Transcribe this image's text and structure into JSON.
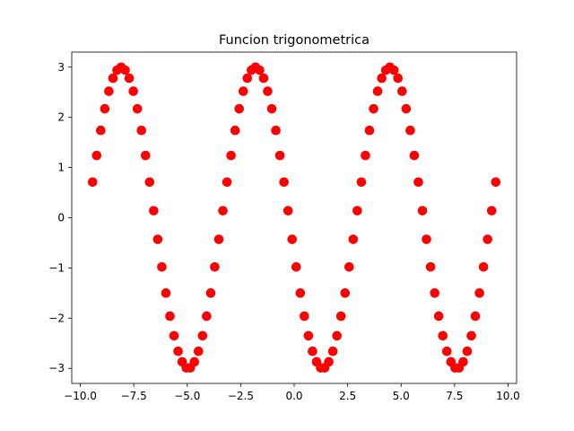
{
  "chart_data": {
    "type": "scatter",
    "title": "Funcion trigonometrica",
    "xlabel": "",
    "ylabel": "",
    "xlim": [
      -10.4,
      10.4
    ],
    "ylim": [
      -3.3,
      3.3
    ],
    "x_ticks": [
      -10.0,
      -7.5,
      -5.0,
      -2.5,
      0.0,
      2.5,
      5.0,
      7.5,
      10.0
    ],
    "x_tick_labels": [
      "−10.0",
      "−7.5",
      "−5.0",
      "−2.5",
      "0.0",
      "2.5",
      "5.0",
      "7.5",
      "10.0"
    ],
    "y_ticks": [
      -3,
      -2,
      -1,
      0,
      1,
      2,
      3
    ],
    "y_tick_labels": [
      "−3",
      "−2",
      "−1",
      "0",
      "1",
      "2",
      "3"
    ],
    "grid": false,
    "marker_color": "#ff0000",
    "x": [
      -9.425,
      -9.235,
      -9.044,
      -8.854,
      -8.664,
      -8.473,
      -8.283,
      -8.092,
      -7.902,
      -7.712,
      -7.521,
      -7.331,
      -7.14,
      -6.95,
      -6.76,
      -6.569,
      -6.379,
      -6.188,
      -5.998,
      -5.807,
      -5.617,
      -5.427,
      -5.236,
      -5.046,
      -4.855,
      -4.665,
      -4.475,
      -4.284,
      -4.094,
      -3.903,
      -3.713,
      -3.522,
      -3.332,
      -3.142,
      -2.951,
      -2.761,
      -2.57,
      -2.38,
      -2.19,
      -1.999,
      -1.809,
      -1.618,
      -1.428,
      -1.238,
      -1.047,
      -0.857,
      -0.666,
      -0.476,
      -0.286,
      -0.095,
      0.095,
      0.286,
      0.476,
      0.666,
      0.857,
      1.047,
      1.238,
      1.428,
      1.618,
      1.809,
      1.999,
      2.19,
      2.38,
      2.57,
      2.761,
      2.951,
      3.142,
      3.332,
      3.522,
      3.713,
      3.903,
      4.094,
      4.284,
      4.475,
      4.665,
      4.855,
      5.046,
      5.236,
      5.427,
      5.617,
      5.807,
      5.998,
      6.188,
      6.379,
      6.569,
      6.76,
      6.95,
      7.14,
      7.331,
      7.521,
      7.712,
      7.902,
      8.092,
      8.283,
      8.473,
      8.664,
      8.854,
      9.044,
      9.235,
      9.425
    ],
    "y": [
      0.71,
      1.24,
      1.74,
      2.17,
      2.52,
      2.78,
      2.94,
      3.0,
      2.94,
      2.78,
      2.52,
      2.17,
      1.74,
      1.24,
      0.71,
      0.14,
      -0.43,
      -0.98,
      -1.5,
      -1.96,
      -2.35,
      -2.66,
      -2.87,
      -2.99,
      -2.99,
      -2.87,
      -2.66,
      -2.35,
      -1.96,
      -1.5,
      -0.98,
      -0.43,
      0.14,
      0.71,
      1.24,
      1.74,
      2.17,
      2.52,
      2.78,
      2.94,
      3.0,
      2.94,
      2.78,
      2.52,
      2.17,
      1.74,
      1.24,
      0.71,
      0.14,
      -0.43,
      -0.98,
      -1.5,
      -1.96,
      -2.35,
      -2.66,
      -2.87,
      -2.99,
      -2.99,
      -2.87,
      -2.66,
      -2.35,
      -1.96,
      -1.5,
      -0.98,
      -0.43,
      0.14,
      0.71,
      1.24,
      1.74,
      2.17,
      2.52,
      2.78,
      2.94,
      3.0,
      2.94,
      2.78,
      2.52,
      2.17,
      1.74,
      1.24,
      0.71,
      0.14,
      -0.43,
      -0.98,
      -1.5,
      -1.96,
      -2.35,
      -2.66,
      -2.87,
      -2.99,
      -2.99,
      -2.87,
      -2.66,
      -2.35,
      -1.96,
      -1.5,
      -0.98,
      -0.43,
      0.14,
      0.71
    ]
  }
}
